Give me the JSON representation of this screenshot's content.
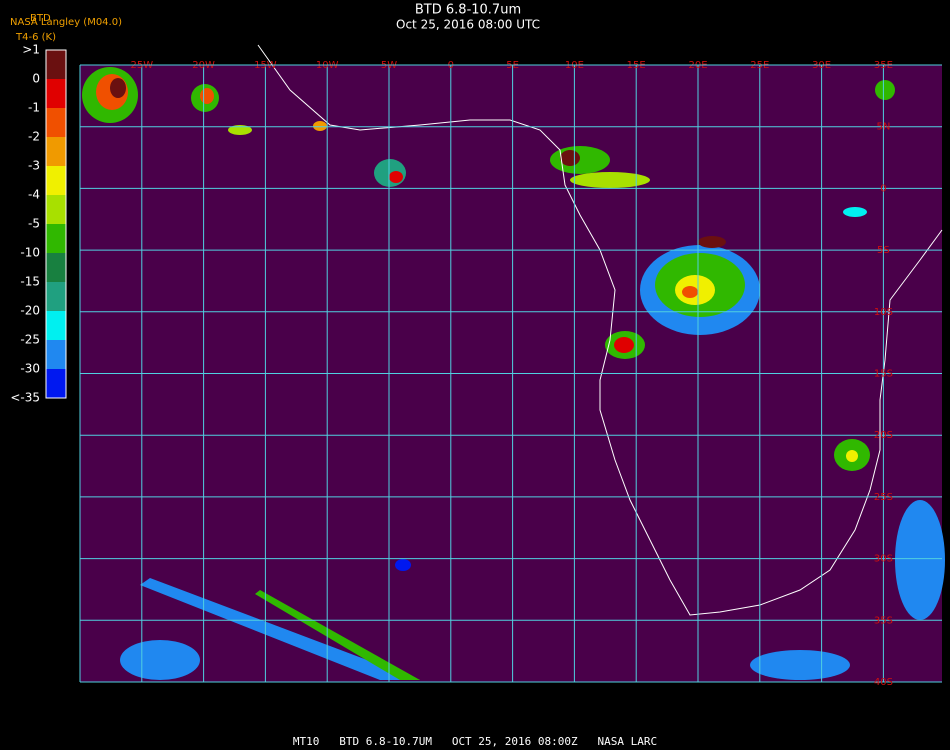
{
  "header": {
    "title": "BTD 6.8-10.7um",
    "subtitle": "Oct 25, 2016 08:00 UTC",
    "source": "NASA Langley (M04.0)",
    "product": "BTD",
    "units": "T4-6 (K)"
  },
  "legend": {
    "labels": [
      ">1",
      "0",
      "-1",
      "-2",
      "-3",
      "-4",
      "-5",
      "-10",
      "-15",
      "-20",
      "-25",
      "-30",
      "<-35"
    ],
    "colors": [
      "#6a1010",
      "#e00000",
      "#f05000",
      "#f09a00",
      "#f0f000",
      "#a8e000",
      "#30b800",
      "#188040",
      "#20a080",
      "#00f0f0",
      "#2088f0",
      "#0018f0",
      "#4a004a"
    ]
  },
  "grid": {
    "lon_labels": [
      "25W",
      "20W",
      "15W",
      "10W",
      "5W",
      "0",
      "5E",
      "10E",
      "15E",
      "20E",
      "25E",
      "30E",
      "35E"
    ],
    "lat_labels": [
      "5N",
      "0",
      "5S",
      "10S",
      "15S",
      "20S",
      "25S",
      "30S",
      "35S",
      "40S"
    ]
  },
  "footer": "MT10   BTD 6.8-10.7UM   OCT 25, 2016 08:00Z   NASA LARC"
}
